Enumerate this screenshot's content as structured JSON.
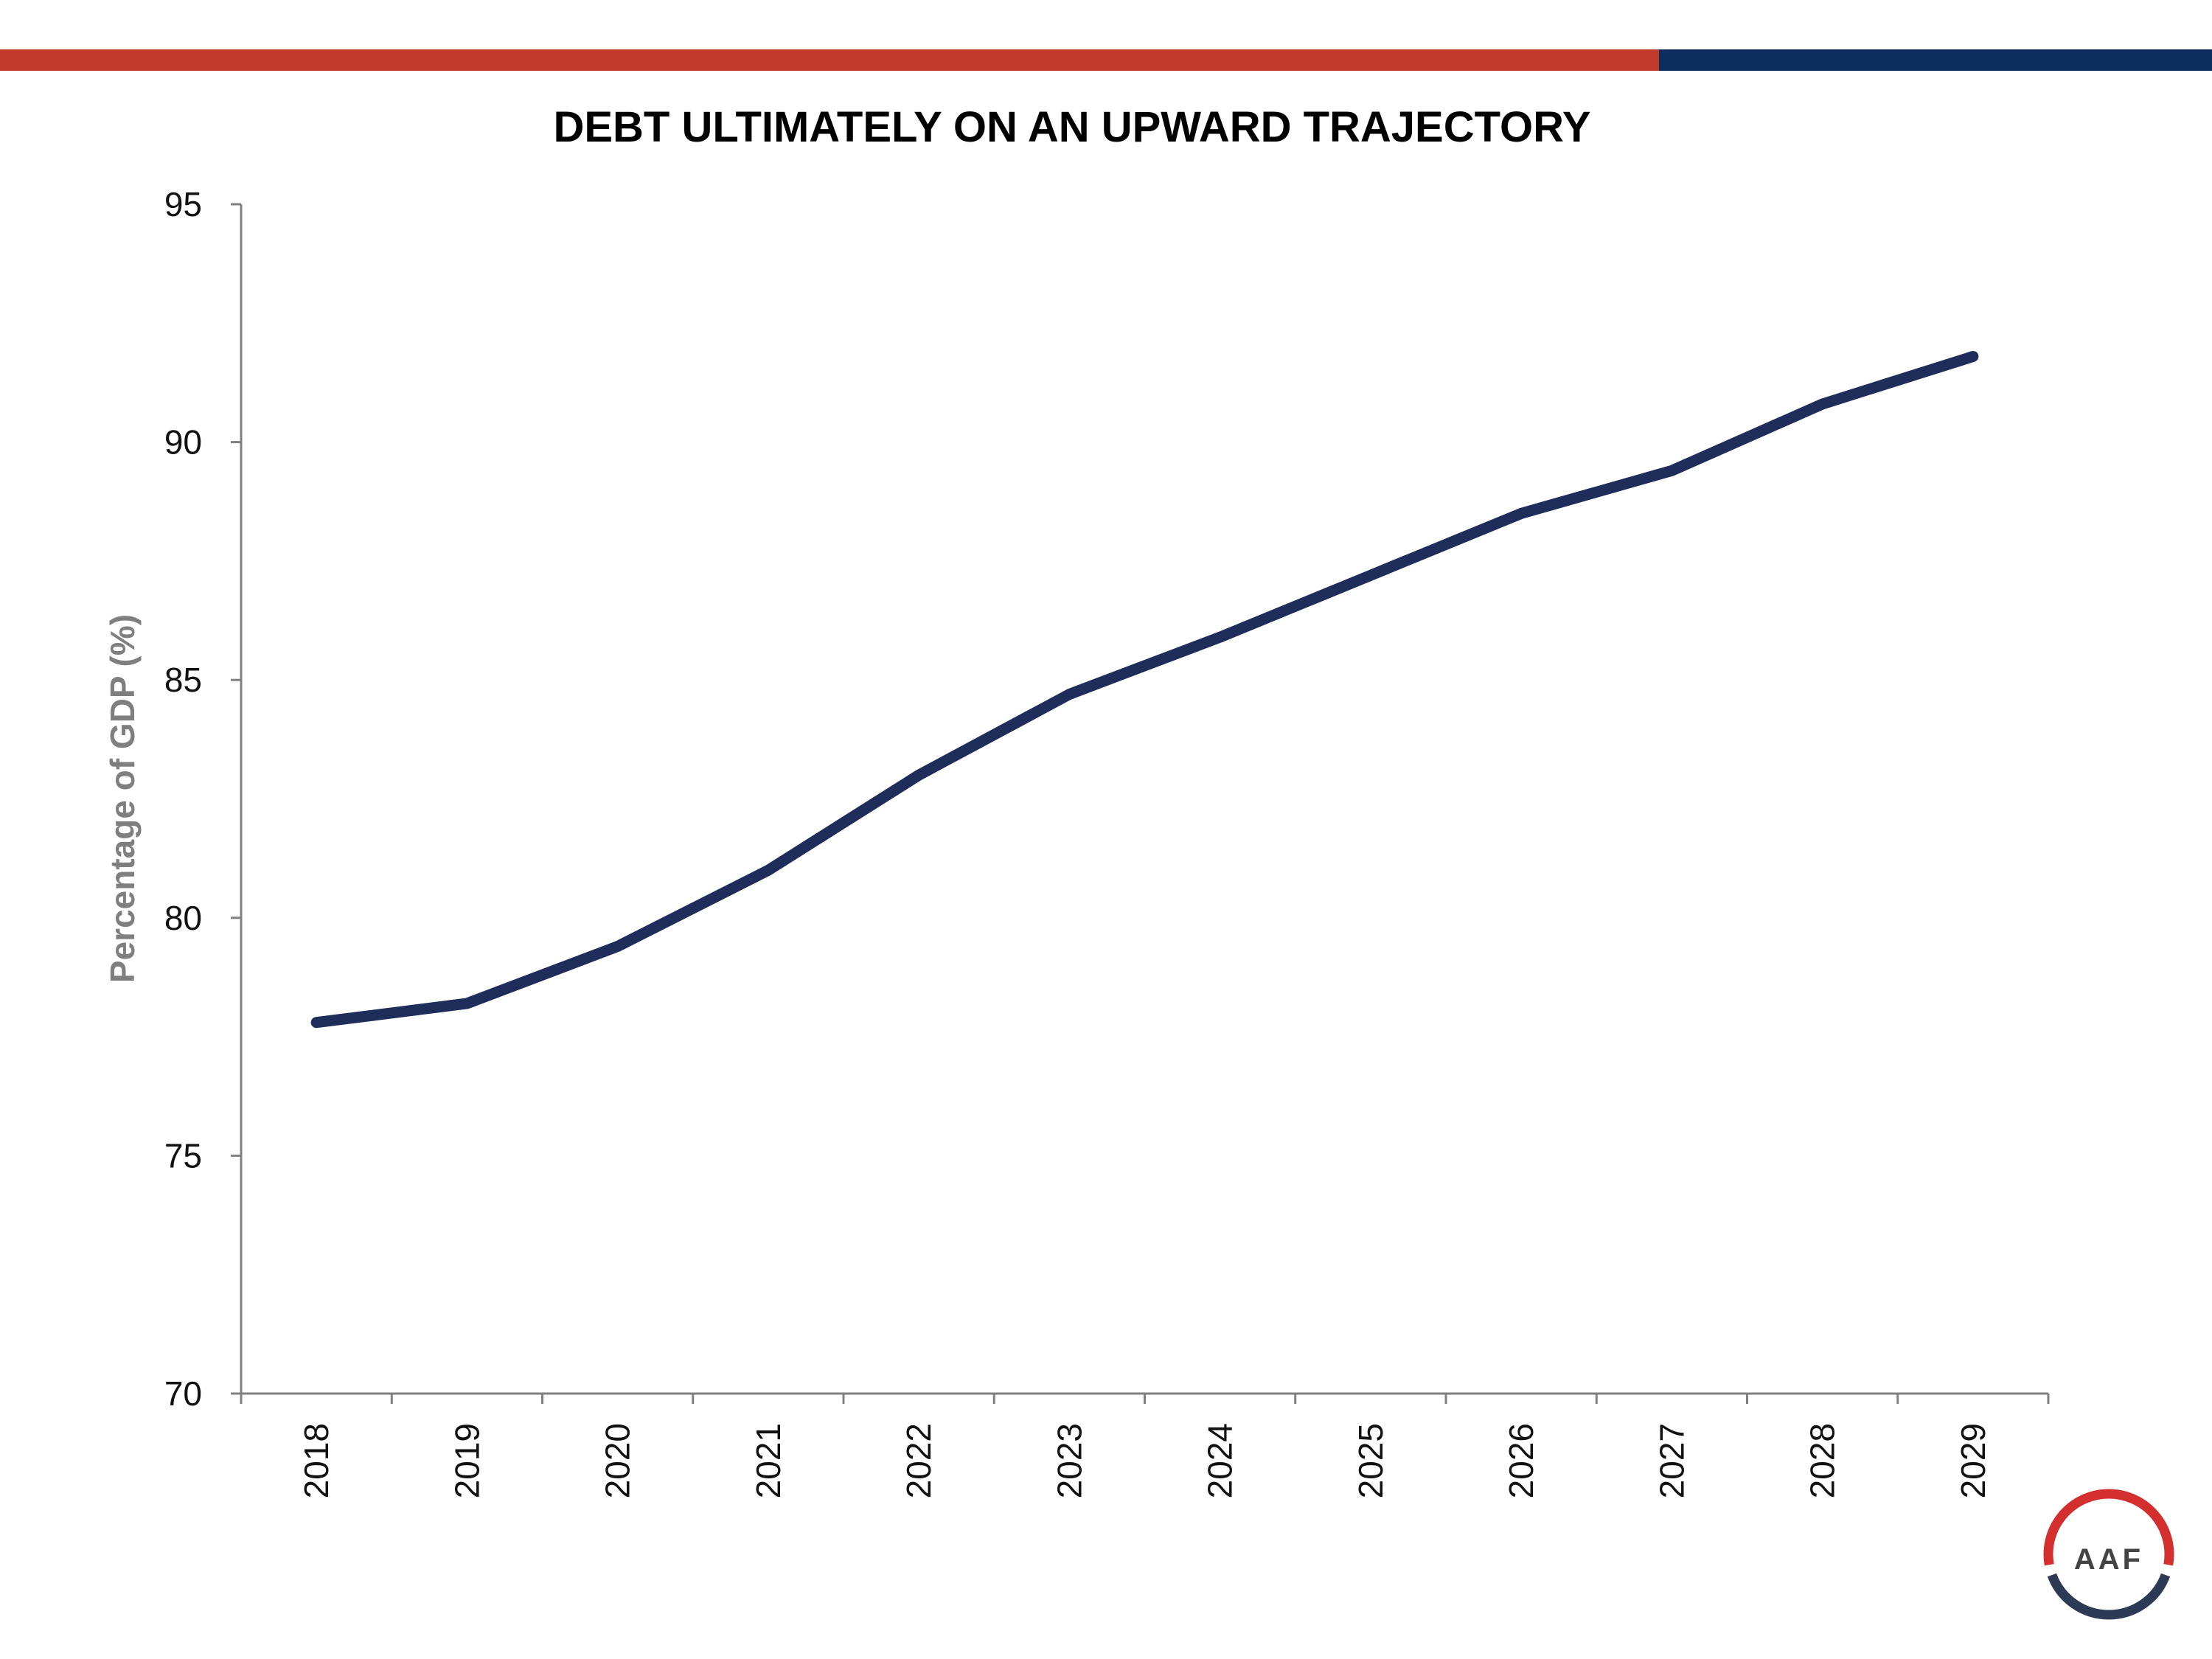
{
  "colors": {
    "top_bar_red": "#c0392b",
    "top_bar_navy": "#0d2d5e",
    "line": "#1f2d5a",
    "axis": "#808080",
    "logo_red": "#d32f2f",
    "logo_navy": "#2c3a55"
  },
  "logo": {
    "text": "AAF"
  },
  "chart_data": {
    "type": "line",
    "title": "DEBT ULTIMATELY ON AN UPWARD TRAJECTORY",
    "xlabel": "",
    "ylabel": "Percentage of GDP (%)",
    "categories": [
      "2018",
      "2019",
      "2020",
      "2021",
      "2022",
      "2023",
      "2024",
      "2025",
      "2026",
      "2027",
      "2028",
      "2029"
    ],
    "values": [
      77.8,
      78.2,
      79.4,
      81.0,
      83.0,
      84.7,
      85.9,
      87.2,
      88.5,
      89.4,
      90.8,
      91.8
    ],
    "ylim": [
      70,
      95
    ],
    "yticks": [
      70,
      75,
      80,
      85,
      90,
      95
    ],
    "grid": false,
    "legend": "none"
  }
}
